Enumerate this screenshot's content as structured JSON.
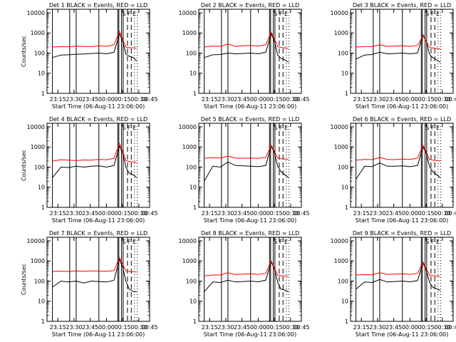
{
  "chart_data": {
    "type": "line",
    "layout": "3x3 grid",
    "xlabel": "Start Time (06-Aug-11 23:06:00)",
    "ylabel": "Counts/sec",
    "yscale": "log",
    "ylim": [
      1,
      15000
    ],
    "xlim": [
      "23:10",
      "00:45"
    ],
    "xticks": [
      "23:15",
      "23:30",
      "23:45",
      "00:00",
      "00:15",
      "00:30",
      "00:45"
    ],
    "yticks": [
      "1",
      "10",
      "100",
      "1000",
      "10000"
    ],
    "ytick_values": [
      1,
      10,
      100,
      1000,
      10000
    ],
    "x_minutes": [
      -50,
      -42,
      -35,
      -28,
      -21,
      -14,
      -7,
      0,
      7,
      12,
      15,
      18,
      21,
      25,
      28
    ],
    "colors": {
      "events": "#000000",
      "lld": "#ff0000"
    },
    "panel_annotation": "S  F  E",
    "panels": [
      {
        "title": "Det 1   BLACK = Events, RED = LLD",
        "series": [
          {
            "name": "Events",
            "values": [
              60,
              80,
              82,
              88,
              90,
              95,
              100,
              92,
              110,
              900,
              400,
              90,
              70,
              60,
              40
            ]
          },
          {
            "name": "LLD",
            "values": [
              200,
              210,
              205,
              220,
              215,
              210,
              230,
              215,
              260,
              1200,
              500,
              200,
              185,
              180,
              175
            ]
          }
        ]
      },
      {
        "title": "Det 2   BLACK = Events, RED = LLD",
        "series": [
          {
            "name": "Events",
            "values": [
              60,
              82,
              85,
              100,
              92,
              95,
              100,
              92,
              110,
              900,
              400,
              80,
              55,
              45,
              35
            ]
          },
          {
            "name": "LLD",
            "values": [
              200,
              220,
              215,
              280,
              215,
              230,
              240,
              220,
              260,
              1100,
              520,
              210,
              190,
              180,
              170
            ]
          }
        ]
      },
      {
        "title": "Det 3   BLACK = Events, RED = LLD",
        "series": [
          {
            "name": "Events",
            "values": [
              50,
              80,
              85,
              110,
              92,
              95,
              100,
              92,
              100,
              800,
              400,
              90,
              60,
              45,
              35
            ]
          },
          {
            "name": "LLD",
            "values": [
              200,
              210,
              210,
              260,
              215,
              220,
              230,
              215,
              240,
              700,
              400,
              200,
              180,
              170,
              160
            ]
          }
        ]
      },
      {
        "title": "Det 4   BLACK = Events, RED = LLD",
        "series": [
          {
            "name": "Events",
            "values": [
              30,
              100,
              95,
              110,
              100,
              110,
              115,
              100,
              120,
              1100,
              500,
              100,
              50,
              40,
              30
            ]
          },
          {
            "name": "LLD",
            "values": [
              200,
              230,
              220,
              210,
              225,
              220,
              240,
              230,
              270,
              1500,
              600,
              210,
              190,
              180,
              170
            ]
          }
        ]
      },
      {
        "title": "Det 5   BLACK = Events, RED = LLD",
        "series": [
          {
            "name": "Events",
            "values": [
              20,
              110,
              100,
              180,
              120,
              115,
              110,
              105,
              120,
              1100,
              500,
              110,
              60,
              40,
              30
            ]
          },
          {
            "name": "LLD",
            "values": [
              280,
              290,
              280,
              350,
              280,
              270,
              280,
              270,
              300,
              1200,
              600,
              280,
              260,
              250,
              240
            ]
          }
        ]
      },
      {
        "title": "Det 6   BLACK = Events, RED = LLD",
        "series": [
          {
            "name": "Events",
            "values": [
              25,
              110,
              105,
              160,
              110,
              110,
              115,
              105,
              120,
              1000,
              500,
              110,
              60,
              40,
              30
            ]
          },
          {
            "name": "LLD",
            "values": [
              220,
              240,
              235,
              300,
              240,
              235,
              250,
              240,
              280,
              1200,
              600,
              240,
              220,
              210,
              200
            ]
          }
        ]
      },
      {
        "title": "Det 7   BLACK = Events, RED = LLD",
        "series": [
          {
            "name": "Events",
            "values": [
              50,
              100,
              90,
              100,
              80,
              100,
              95,
              90,
              110,
              1200,
              500,
              100,
              40,
              30,
              30
            ]
          },
          {
            "name": "LLD",
            "values": [
              300,
              310,
              300,
              320,
              310,
              320,
              315,
              305,
              330,
              1500,
              700,
              320,
              300,
              290,
              280
            ]
          }
        ]
      },
      {
        "title": "Det 8   BLACK = Events, RED = LLD",
        "series": [
          {
            "name": "Events",
            "values": [
              30,
              90,
              85,
              110,
              90,
              95,
              100,
              92,
              110,
              900,
              400,
              90,
              40,
              35,
              30
            ]
          },
          {
            "name": "LLD",
            "values": [
              180,
              200,
              200,
              260,
              210,
              220,
              230,
              215,
              240,
              1000,
              450,
              200,
              185,
              180,
              175
            ]
          }
        ]
      },
      {
        "title": "Det 9   BLACK = Events, RED = LLD",
        "series": [
          {
            "name": "Events",
            "values": [
              40,
              90,
              85,
              120,
              90,
              95,
              100,
              92,
              105,
              800,
              350,
              90,
              50,
              40,
              35
            ]
          },
          {
            "name": "LLD",
            "values": [
              200,
              210,
              205,
              260,
              215,
              220,
              230,
              215,
              240,
              900,
              420,
              200,
              185,
              180,
              175
            ]
          }
        ]
      }
    ]
  }
}
